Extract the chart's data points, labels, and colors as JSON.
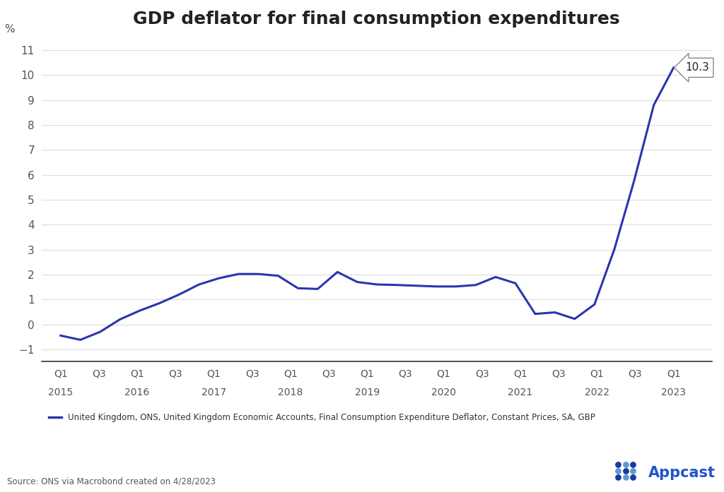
{
  "title": "GDP deflator for final consumption expenditures",
  "ylabel": "%",
  "line_color": "#2B35AF",
  "line_width": 2.2,
  "background_color": "#ffffff",
  "ylim": [
    -1.5,
    11.5
  ],
  "yticks": [
    -1,
    0,
    1,
    2,
    3,
    4,
    5,
    6,
    7,
    8,
    9,
    10,
    11
  ],
  "last_value": 10.3,
  "legend_label": "United Kingdom, ONS, United Kingdom Economic Accounts, Final Consumption Expenditure Deflator, Constant Prices, SA, GBP",
  "source_text": "Source: ONS via Macrobond created on 4/28/2023",
  "x_tick_labels": [
    "Q1",
    "Q3",
    "Q1",
    "Q3",
    "Q1",
    "Q3",
    "Q1",
    "Q3",
    "Q1",
    "Q3",
    "Q1",
    "Q3",
    "Q1",
    "Q3",
    "Q1",
    "Q3",
    "Q1"
  ],
  "x_year_labels": [
    "2015",
    "2016",
    "2017",
    "2018",
    "2019",
    "2020",
    "2021",
    "2022",
    "2023"
  ],
  "x_year_positions": [
    0,
    4,
    8,
    12,
    16,
    20,
    24,
    28,
    32
  ],
  "values": [
    -0.45,
    -0.62,
    -0.3,
    0.2,
    0.55,
    0.85,
    1.2,
    1.6,
    1.85,
    2.02,
    2.02,
    1.95,
    1.45,
    1.42,
    2.1,
    1.7,
    1.6,
    1.58,
    1.55,
    1.52,
    1.52,
    1.58,
    1.9,
    1.65,
    0.42,
    0.48,
    0.22,
    0.8,
    3.0,
    5.75,
    8.8,
    10.3
  ]
}
